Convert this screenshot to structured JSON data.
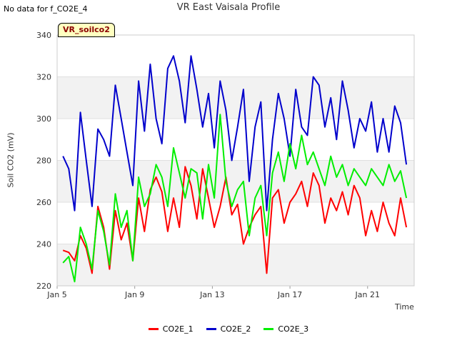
{
  "note": "No data for f_CO2E_4",
  "badge": "VR_soilco2",
  "chart_data": {
    "type": "line",
    "title": "VR East Vaisala Profile",
    "xlabel": "Time",
    "ylabel": "Soil CO2 (mV)",
    "ylim": [
      220,
      340
    ],
    "xlim": [
      0,
      18.4
    ],
    "x_unit": "days since Jan 5",
    "yticks": [
      220,
      240,
      260,
      280,
      300,
      320,
      340
    ],
    "xticks": [
      {
        "x": 0,
        "label": "Jan 5"
      },
      {
        "x": 4,
        "label": "Jan 9"
      },
      {
        "x": 8,
        "label": "Jan 13"
      },
      {
        "x": 12,
        "label": "Jan 17"
      },
      {
        "x": 16,
        "label": "Jan 21"
      }
    ],
    "grid": true,
    "legend": "bottom",
    "series": [
      {
        "name": "CO2E_1",
        "color": "#ff0000",
        "x": [
          0.3,
          0.6,
          0.9,
          1.2,
          1.5,
          1.8,
          2.1,
          2.4,
          2.7,
          3.0,
          3.3,
          3.6,
          3.9,
          4.2,
          4.5,
          4.8,
          5.1,
          5.4,
          5.7,
          6.0,
          6.3,
          6.6,
          6.9,
          7.2,
          7.5,
          7.8,
          8.1,
          8.4,
          8.7,
          9.0,
          9.3,
          9.6,
          9.9,
          10.2,
          10.5,
          10.8,
          11.1,
          11.4,
          11.7,
          12.0,
          12.3,
          12.6,
          12.9,
          13.2,
          13.5,
          13.8,
          14.1,
          14.4,
          14.7,
          15.0,
          15.3,
          15.6,
          15.9,
          16.2,
          16.5,
          16.8,
          17.1,
          17.4,
          17.7,
          18.0
        ],
        "values": [
          237,
          236,
          232,
          244,
          238,
          226,
          258,
          248,
          228,
          256,
          242,
          250,
          232,
          262,
          246,
          266,
          272,
          265,
          246,
          262,
          248,
          277,
          268,
          252,
          276,
          262,
          248,
          258,
          272,
          254,
          259,
          240,
          248,
          254,
          258,
          226,
          262,
          266,
          250,
          260,
          264,
          270,
          258,
          274,
          268,
          250,
          262,
          256,
          265,
          254,
          268,
          262,
          244,
          256,
          246,
          260,
          250,
          244,
          262,
          248
        ]
      },
      {
        "name": "CO2E_2",
        "color": "#0000cc",
        "x": [
          0.3,
          0.6,
          0.9,
          1.2,
          1.5,
          1.8,
          2.1,
          2.4,
          2.7,
          3.0,
          3.3,
          3.6,
          3.9,
          4.2,
          4.5,
          4.8,
          5.1,
          5.4,
          5.7,
          6.0,
          6.3,
          6.6,
          6.9,
          7.2,
          7.5,
          7.8,
          8.1,
          8.4,
          8.7,
          9.0,
          9.3,
          9.6,
          9.9,
          10.2,
          10.5,
          10.8,
          11.1,
          11.4,
          11.7,
          12.0,
          12.3,
          12.6,
          12.9,
          13.2,
          13.5,
          13.8,
          14.1,
          14.4,
          14.7,
          15.0,
          15.3,
          15.6,
          15.9,
          16.2,
          16.5,
          16.8,
          17.1,
          17.4,
          17.7,
          18.0
        ],
        "values": [
          282,
          276,
          256,
          303,
          280,
          258,
          295,
          290,
          282,
          316,
          300,
          284,
          268,
          318,
          294,
          326,
          300,
          288,
          324,
          330,
          318,
          298,
          330,
          314,
          296,
          312,
          286,
          318,
          304,
          280,
          296,
          314,
          270,
          296,
          308,
          256,
          290,
          312,
          300,
          282,
          314,
          296,
          292,
          320,
          316,
          296,
          310,
          290,
          318,
          304,
          286,
          300,
          294,
          308,
          284,
          300,
          284,
          306,
          298,
          278
        ]
      },
      {
        "name": "CO2E_3",
        "color": "#00ee00",
        "x": [
          0.3,
          0.6,
          0.9,
          1.2,
          1.5,
          1.8,
          2.1,
          2.4,
          2.7,
          3.0,
          3.3,
          3.6,
          3.9,
          4.2,
          4.5,
          4.8,
          5.1,
          5.4,
          5.7,
          6.0,
          6.3,
          6.6,
          6.9,
          7.2,
          7.5,
          7.8,
          8.1,
          8.4,
          8.7,
          9.0,
          9.3,
          9.6,
          9.9,
          10.2,
          10.5,
          10.8,
          11.1,
          11.4,
          11.7,
          12.0,
          12.3,
          12.6,
          12.9,
          13.2,
          13.5,
          13.8,
          14.1,
          14.4,
          14.7,
          15.0,
          15.3,
          15.6,
          15.9,
          16.2,
          16.5,
          16.8,
          17.1,
          17.4,
          17.7,
          18.0
        ],
        "values": [
          231,
          234,
          222,
          248,
          240,
          228,
          256,
          246,
          230,
          264,
          248,
          256,
          232,
          272,
          258,
          264,
          278,
          272,
          258,
          286,
          274,
          262,
          276,
          274,
          252,
          278,
          262,
          302,
          270,
          258,
          266,
          270,
          244,
          262,
          268,
          244,
          274,
          284,
          270,
          288,
          276,
          292,
          278,
          284,
          276,
          268,
          282,
          272,
          278,
          268,
          276,
          272,
          268,
          276,
          272,
          268,
          278,
          270,
          275,
          262
        ]
      }
    ]
  }
}
